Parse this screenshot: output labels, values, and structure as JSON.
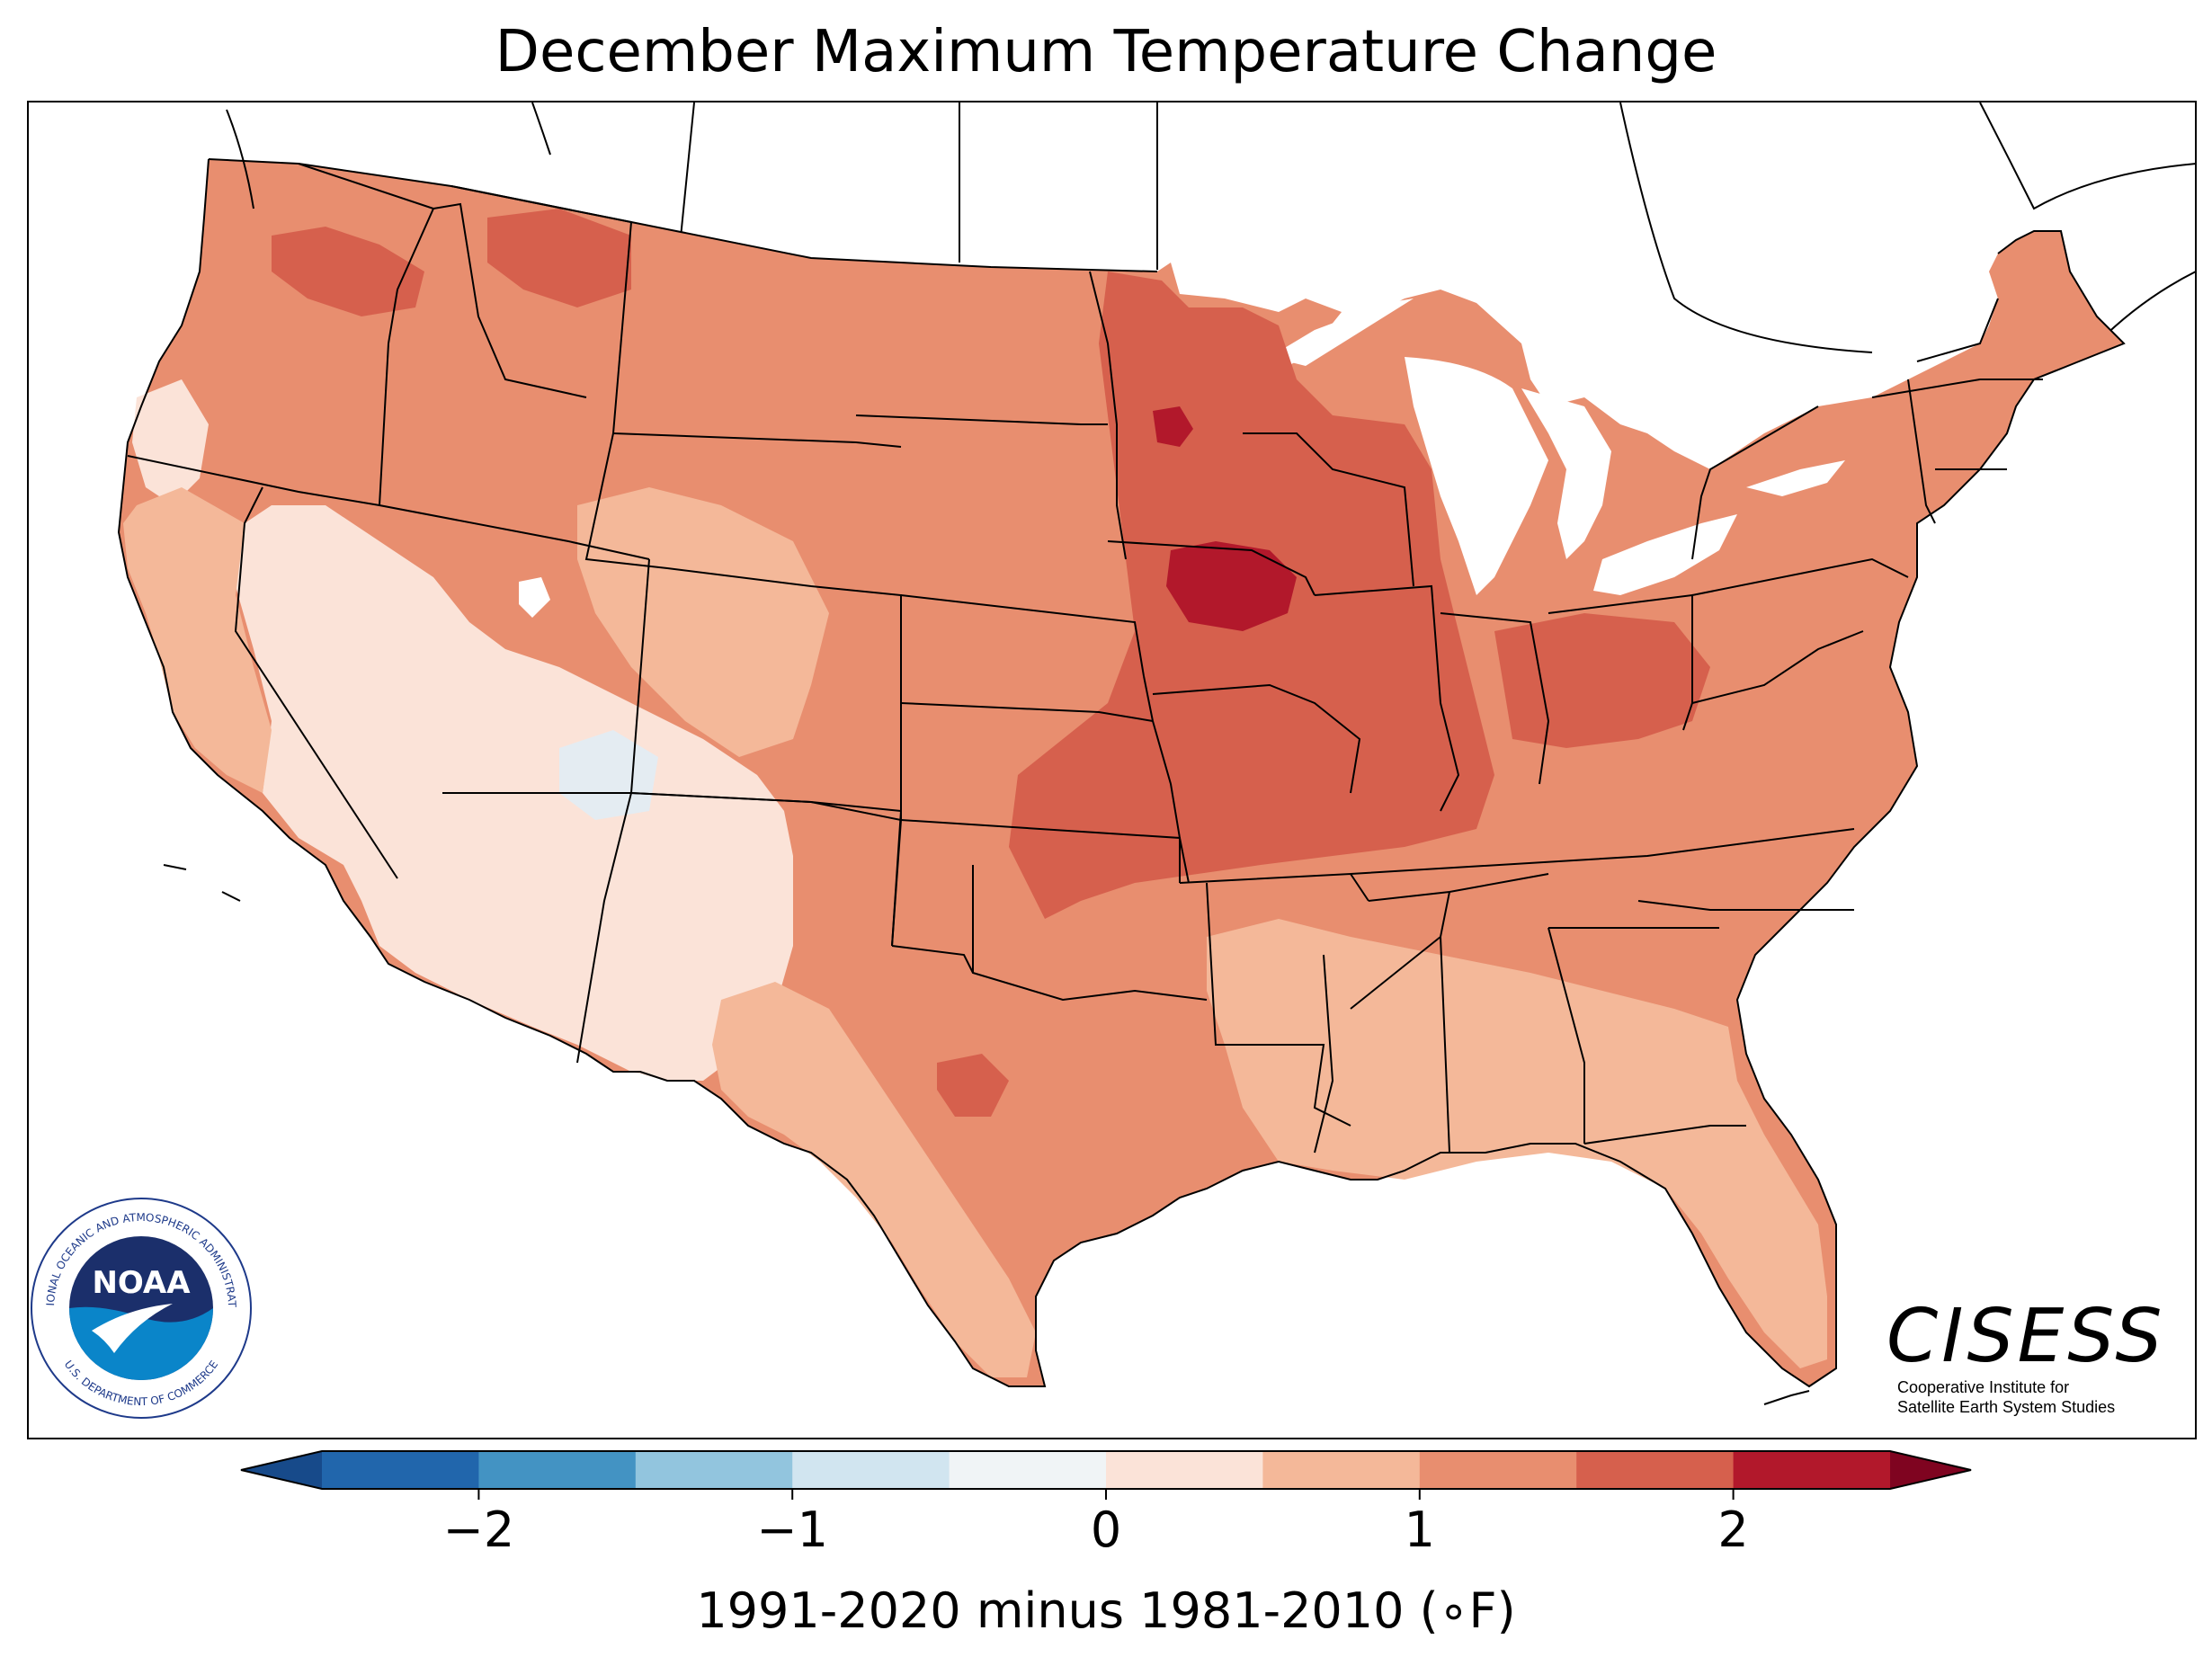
{
  "title": "December Maximum Temperature Change",
  "colorbar": {
    "label": "1991-2020 minus 1981-2010 (∘F)",
    "ticks": [
      {
        "value": -2,
        "label": "−2"
      },
      {
        "value": -1,
        "label": "−1"
      },
      {
        "value": 0,
        "label": "0"
      },
      {
        "value": 1,
        "label": "1"
      },
      {
        "value": 2,
        "label": "2"
      }
    ],
    "range": [
      -2.5,
      2.5
    ],
    "step": 0.5,
    "extend": "both",
    "colors": [
      "#2166ac",
      "#4393c3",
      "#92c5de",
      "#d1e5f0",
      "#f0f4f6",
      "#fbe3d8",
      "#f4b899",
      "#e88e6f",
      "#d6604d",
      "#b2182b"
    ],
    "under_color": "#174a8a",
    "over_color": "#7f0420"
  },
  "map": {
    "region": "Contiguous United States",
    "colors": {
      "light": "#fbe3d8",
      "low": "#f4b899",
      "mid": "#e88e6f",
      "high": "#d6604d",
      "max": "#b2182b",
      "cool": "#e4ecf2",
      "water": "#ffffff"
    }
  },
  "logos": {
    "noaa": {
      "wordmark": "NOAA",
      "ring_text_top": "NATIONAL OCEANIC AND ATMOSPHERIC ADMINISTRATION",
      "ring_text_bottom": "U.S. DEPARTMENT OF COMMERCE"
    },
    "cisess": {
      "wordmark": "CISESS",
      "line1": "Cooperative Institute for",
      "line2": "Satellite Earth System Studies"
    }
  }
}
